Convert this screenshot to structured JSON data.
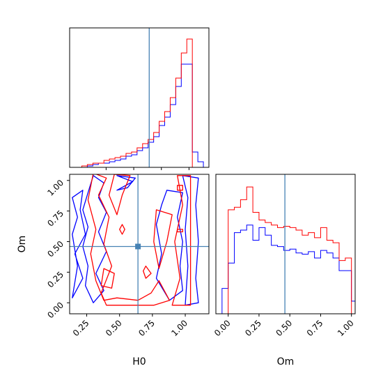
{
  "chart_data": {
    "type": "corner",
    "parameters": [
      "H0",
      "Om"
    ],
    "truth": {
      "H0": 0.64,
      "Om": 0.46
    },
    "truth_color": "#4682b4",
    "series": [
      {
        "color": "#0000ff",
        "hist_H0": {
          "edges": [
            -0.07,
            -0.02,
            0.03,
            0.08,
            0.13,
            0.18,
            0.23,
            0.28,
            0.33,
            0.38,
            0.43,
            0.48,
            0.53,
            0.58,
            0.63,
            0.68,
            0.73,
            0.78,
            0.83,
            0.88,
            0.93,
            0.98,
            1.03,
            1.08,
            1.13
          ],
          "counts": [
            0,
            0,
            0,
            1,
            2,
            3,
            3,
            4,
            5,
            6,
            8,
            9,
            12,
            14,
            18,
            22,
            30,
            36,
            45,
            58,
            74,
            74,
            11,
            4
          ]
        },
        "hist_Om": {
          "edges": [
            -0.1,
            -0.05,
            0.0,
            0.05,
            0.1,
            0.15,
            0.2,
            0.25,
            0.3,
            0.35,
            0.4,
            0.45,
            0.5,
            0.55,
            0.6,
            0.65,
            0.7,
            0.75,
            0.8,
            0.85,
            0.9,
            0.95,
            1.0,
            1.05
          ],
          "counts": [
            0,
            20,
            40,
            64,
            66,
            70,
            58,
            68,
            62,
            54,
            53,
            50,
            51,
            48,
            47,
            49,
            44,
            50,
            48,
            44,
            34,
            34,
            10
          ]
        },
        "contours": [
          [
            [
              0.3,
              1.04
            ],
            [
              0.38,
              0.98
            ],
            [
              0.34,
              0.86
            ],
            [
              0.4,
              0.74
            ],
            [
              0.34,
              0.58
            ],
            [
              0.4,
              0.42
            ],
            [
              0.32,
              0.24
            ],
            [
              0.38,
              0.1
            ],
            [
              0.3,
              0.0
            ],
            [
              0.24,
              0.14
            ],
            [
              0.26,
              0.3
            ],
            [
              0.22,
              0.46
            ],
            [
              0.26,
              0.62
            ],
            [
              0.22,
              0.76
            ],
            [
              0.26,
              0.9
            ]
          ],
          [
            [
              0.48,
              1.04
            ],
            [
              0.6,
              0.99
            ],
            [
              0.48,
              0.92
            ],
            [
              0.56,
              0.94
            ],
            [
              0.62,
              1.02
            ]
          ],
          [
            [
              0.86,
              0.92
            ],
            [
              0.98,
              0.9
            ],
            [
              0.94,
              0.7
            ],
            [
              0.98,
              0.5
            ],
            [
              0.96,
              0.3
            ],
            [
              0.98,
              0.1
            ],
            [
              0.88,
              0.02
            ],
            [
              0.78,
              0.2
            ],
            [
              0.82,
              0.4
            ],
            [
              0.78,
              0.64
            ],
            [
              0.82,
              0.8
            ]
          ],
          [
            [
              0.98,
              1.04
            ],
            [
              1.1,
              1.02
            ],
            [
              1.08,
              0.8
            ],
            [
              1.1,
              0.5
            ],
            [
              1.08,
              0.2
            ],
            [
              1.1,
              0.0
            ],
            [
              1.0,
              -0.02
            ],
            [
              1.02,
              0.3
            ],
            [
              1.0,
              0.6
            ],
            [
              1.02,
              0.86
            ]
          ],
          [
            [
              0.14,
              0.86
            ],
            [
              0.22,
              0.92
            ],
            [
              0.2,
              0.76
            ],
            [
              0.24,
              0.56
            ],
            [
              0.16,
              0.4
            ],
            [
              0.22,
              0.2
            ],
            [
              0.14,
              0.04
            ],
            [
              0.18,
              0.3
            ],
            [
              0.14,
              0.56
            ],
            [
              0.18,
              0.7
            ]
          ]
        ]
      },
      {
        "color": "#ff0000",
        "hist_H0": {
          "edges": [
            -0.07,
            -0.02,
            0.03,
            0.08,
            0.13,
            0.18,
            0.23,
            0.28,
            0.33,
            0.38,
            0.43,
            0.48,
            0.53,
            0.58,
            0.63,
            0.68,
            0.73,
            0.78,
            0.83,
            0.88,
            0.93,
            0.98,
            1.03,
            1.08,
            1.13
          ],
          "counts": [
            0,
            0,
            1,
            2,
            3,
            3,
            5,
            6,
            7,
            8,
            10,
            11,
            14,
            17,
            20,
            25,
            33,
            40,
            50,
            64,
            82,
            92,
            0,
            0
          ]
        },
        "hist_Om": {
          "edges": [
            -0.1,
            -0.05,
            0.0,
            0.05,
            0.1,
            0.15,
            0.2,
            0.25,
            0.3,
            0.35,
            0.4,
            0.45,
            0.5,
            0.55,
            0.6,
            0.65,
            0.7,
            0.75,
            0.8,
            0.85,
            0.9,
            0.95,
            1.0,
            1.05
          ],
          "counts": [
            0,
            0,
            82,
            84,
            90,
            100,
            80,
            74,
            72,
            70,
            68,
            69,
            68,
            66,
            62,
            64,
            60,
            68,
            58,
            56,
            42,
            44,
            0
          ]
        },
        "contours": [
          [
            [
              0.3,
              1.06
            ],
            [
              0.4,
              1.02
            ],
            [
              0.34,
              0.88
            ],
            [
              0.42,
              0.7
            ],
            [
              0.38,
              0.48
            ],
            [
              0.44,
              0.3
            ],
            [
              0.36,
              0.08
            ],
            [
              0.4,
              -0.02
            ],
            [
              0.56,
              -0.02
            ],
            [
              0.76,
              -0.02
            ],
            [
              0.88,
              0.02
            ],
            [
              0.8,
              0.18
            ],
            [
              0.74,
              0.08
            ],
            [
              0.64,
              0.02
            ],
            [
              0.48,
              0.04
            ],
            [
              0.38,
              0.02
            ],
            [
              0.32,
              0.18
            ],
            [
              0.28,
              0.4
            ],
            [
              0.32,
              0.6
            ],
            [
              0.26,
              0.84
            ]
          ],
          [
            [
              0.46,
              1.05
            ],
            [
              0.58,
              1.04
            ],
            [
              0.52,
              0.88
            ],
            [
              0.48,
              0.72
            ],
            [
              0.42,
              0.88
            ]
          ],
          [
            [
              0.94,
              1.04
            ],
            [
              1.04,
              1.04
            ],
            [
              1.04,
              0.5
            ],
            [
              1.04,
              -0.02
            ],
            [
              0.9,
              -0.02
            ],
            [
              0.96,
              0.2
            ],
            [
              0.92,
              0.5
            ],
            [
              0.98,
              0.8
            ]
          ],
          [
            [
              0.78,
              0.76
            ],
            [
              0.9,
              0.72
            ],
            [
              0.86,
              0.5
            ],
            [
              0.8,
              0.28
            ],
            [
              0.76,
              0.5
            ]
          ],
          [
            [
              0.38,
              0.28
            ],
            [
              0.46,
              0.24
            ],
            [
              0.44,
              0.12
            ],
            [
              0.36,
              0.14
            ]
          ],
          [
            [
              0.52,
              0.64
            ],
            [
              0.54,
              0.6
            ],
            [
              0.52,
              0.56
            ],
            [
              0.5,
              0.6
            ]
          ],
          [
            [
              0.7,
              0.3
            ],
            [
              0.74,
              0.24
            ],
            [
              0.7,
              0.2
            ],
            [
              0.68,
              0.26
            ]
          ],
          [
            [
              0.94,
              0.6
            ],
            [
              0.98,
              0.6
            ],
            [
              0.98,
              0.58
            ],
            [
              0.94,
              0.58
            ]
          ],
          [
            [
              0.94,
              0.96
            ],
            [
              0.98,
              0.96
            ],
            [
              0.98,
              0.92
            ],
            [
              0.94,
              0.92
            ]
          ]
        ]
      }
    ],
    "panels": {
      "hist_H0": {
        "xlim": [
          -0.08,
          1.18
        ],
        "ylim": [
          0,
          100
        ],
        "xticks": [
          0.25,
          0.5,
          0.75,
          1.0
        ],
        "show_tick_labels": false
      },
      "scatter": {
        "xlim": [
          0.12,
          1.18
        ],
        "ylim": [
          -0.09,
          1.05
        ],
        "xticks": [
          0.25,
          0.5,
          0.75,
          1.0
        ],
        "xtick_labels": [
          "0.25",
          "0.50",
          "0.75",
          "1.00"
        ],
        "yticks": [
          0.0,
          0.25,
          0.5,
          0.75,
          1.0
        ],
        "ytick_labels": [
          "0.00",
          "0.25",
          "0.50",
          "0.75",
          "1.00"
        ],
        "xlabel": "H0",
        "ylabel": "Om"
      },
      "hist_Om": {
        "xlim": [
          -0.1,
          1.03
        ],
        "ylim": [
          0,
          110
        ],
        "xticks": [
          0.0,
          0.25,
          0.5,
          0.75,
          1.0
        ],
        "xtick_labels": [
          "0.00",
          "0.25",
          "0.50",
          "0.75",
          "1.00"
        ],
        "xlabel": "Om"
      }
    }
  }
}
